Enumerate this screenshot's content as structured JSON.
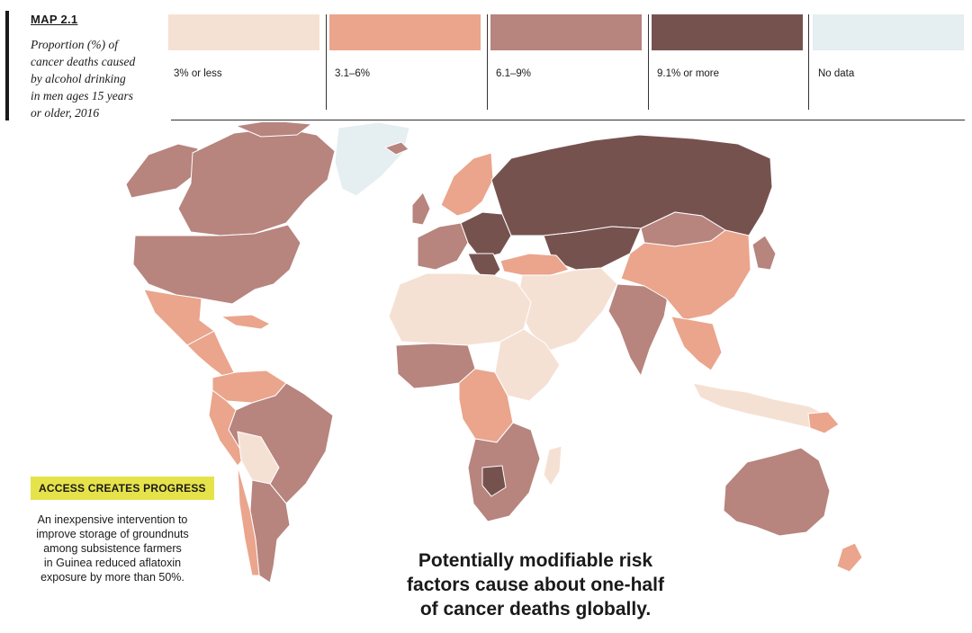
{
  "map_label": "MAP 2.1",
  "caption_lines": [
    "Proportion (%) of",
    "cancer deaths caused",
    "by alcohol drinking",
    "in men ages 15 years",
    "or older, 2016"
  ],
  "legend": [
    {
      "label": "3% or less",
      "color": "#f5e1d4"
    },
    {
      "label": "3.1–6%",
      "color": "#eaa58c"
    },
    {
      "label": "6.1–9%",
      "color": "#b7847e"
    },
    {
      "label": "9.1% or more",
      "color": "#76524f"
    },
    {
      "label": "No data",
      "color": "#e5eef0"
    }
  ],
  "callout": {
    "tag": "ACCESS CREATES PROGRESS",
    "lines": [
      "An inexpensive intervention to",
      "improve storage of groundnuts",
      "among subsistence farmers",
      "in Guinea reduced aflatoxin",
      "exposure by more than 50%."
    ]
  },
  "headline_lines": [
    "Potentially modifiable risk",
    "factors cause about one-half",
    "of cancer deaths globally."
  ]
}
